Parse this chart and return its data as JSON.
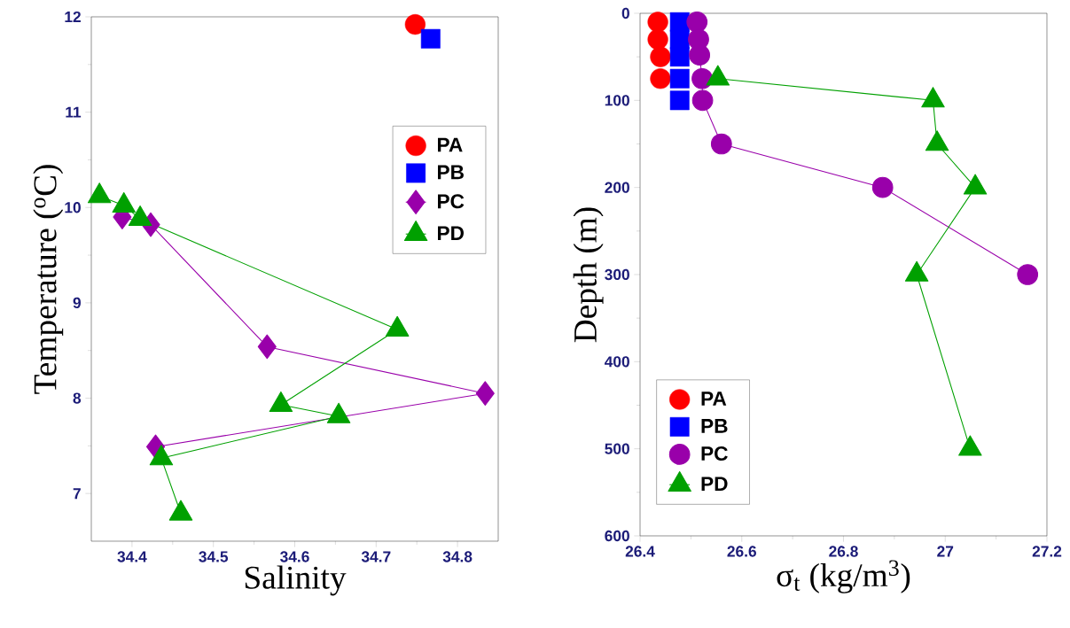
{
  "chart_data": [
    {
      "type": "line",
      "xlabel": "Salinity",
      "ylabel": "Temperature ($^{o}$C)",
      "xlim": [
        34.35,
        34.85
      ],
      "ylim": [
        6.5,
        12
      ],
      "xticks": [
        34.4,
        34.5,
        34.6,
        34.7,
        34.8
      ],
      "yticks": [
        7,
        8,
        9,
        10,
        11,
        12
      ],
      "legend": "right",
      "line_style": "solid",
      "series": [
        {
          "name": "PA",
          "type": "scatter",
          "color": "#ff0000",
          "marker": "circle",
          "x": [
            34.748
          ],
          "values": [
            11.92
          ]
        },
        {
          "name": "PB",
          "type": "scatter",
          "color": "#0000ff",
          "marker": "square",
          "x": [
            34.767
          ],
          "values": [
            11.77
          ]
        },
        {
          "name": "PC",
          "color": "#9900aa",
          "marker": "diamond",
          "x": [
            34.388,
            34.423,
            34.566,
            34.834,
            34.429
          ],
          "values": [
            9.9,
            9.82,
            8.54,
            8.05,
            7.49
          ]
        },
        {
          "name": "PD",
          "color": "#00a000",
          "marker": "triangle",
          "x": [
            34.36,
            34.39,
            34.41,
            34.726,
            34.583,
            34.654,
            34.436,
            34.46
          ],
          "values": [
            10.12,
            10.02,
            9.88,
            8.72,
            7.93,
            7.81,
            7.37,
            6.79
          ]
        }
      ]
    },
    {
      "type": "line",
      "xlabel": "σ$_{t}$ (kg/m$^{3}$)",
      "ylabel": "Depth (m)",
      "xlim": [
        26.4,
        27.2
      ],
      "ylim": [
        600,
        0
      ],
      "xticks": [
        26.4,
        26.6,
        26.8,
        27,
        27.2
      ],
      "yticks": [
        0,
        100,
        200,
        300,
        400,
        500,
        600
      ],
      "legend": "bottom left",
      "line_style": "solid",
      "series": [
        {
          "name": "PA",
          "type": "scatter",
          "color": "#ff0000",
          "marker": "circle",
          "x": [
            26.435,
            26.435,
            26.44,
            26.44
          ],
          "values": [
            10,
            30,
            50,
            75
          ]
        },
        {
          "name": "PB",
          "type": "scatter",
          "color": "#0000ff",
          "marker": "square",
          "x": [
            26.478,
            26.478,
            26.478,
            26.478,
            26.478
          ],
          "values": [
            10,
            30,
            50,
            75,
            100
          ]
        },
        {
          "name": "PC",
          "color": "#9900aa",
          "marker": "circle",
          "x": [
            26.512,
            26.515,
            26.517,
            26.522,
            26.523,
            26.56,
            26.877,
            27.162
          ],
          "values": [
            10,
            30,
            48,
            75,
            100,
            150,
            200,
            300
          ]
        },
        {
          "name": "PD",
          "color": "#00a000",
          "marker": "triangle",
          "x": [
            26.553,
            26.976,
            26.984,
            27.059,
            26.944,
            27.049
          ],
          "values": [
            75,
            100,
            150,
            200,
            300,
            500
          ]
        }
      ]
    }
  ]
}
